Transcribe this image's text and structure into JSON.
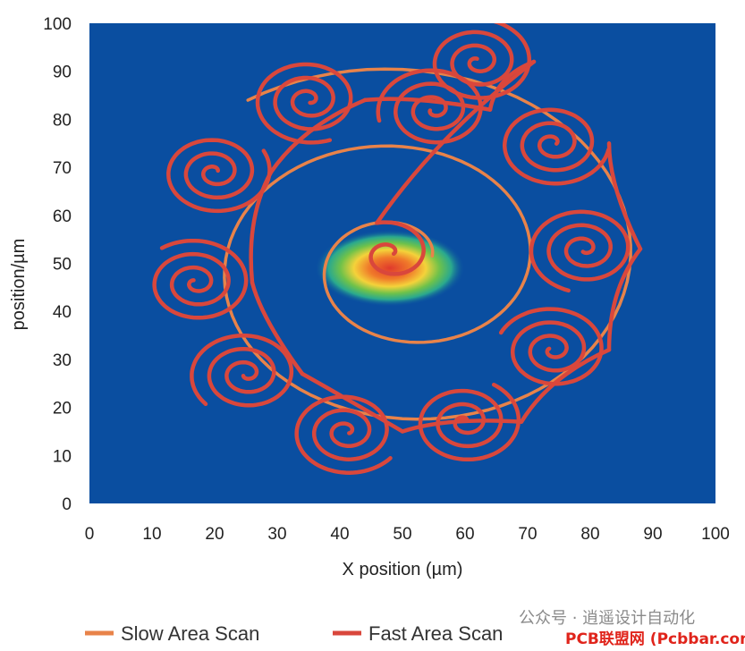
{
  "chart_data": {
    "type": "line",
    "xlabel": "X position (µm)",
    "ylabel": "position/µm",
    "xlim": [
      0,
      100
    ],
    "ylim": [
      0,
      100
    ],
    "xticks": [
      0,
      10,
      20,
      30,
      40,
      50,
      60,
      70,
      80,
      90,
      100
    ],
    "yticks": [
      0,
      10,
      20,
      30,
      40,
      50,
      60,
      70,
      80,
      90,
      100
    ],
    "background_color": "#0a4ea0",
    "legend_position": "bottom",
    "legend": [
      {
        "label": "Slow Area Scan",
        "color": "#e8834a"
      },
      {
        "label": "Fast Area Scan",
        "color": "#d9473c"
      }
    ],
    "hotspot": {
      "center": [
        48,
        49
      ],
      "radius_x": 12,
      "radius_y": 8
    },
    "series": [
      {
        "name": "Slow Area Scan",
        "kind": "spiral",
        "center": [
          50,
          50
        ],
        "start_radius": 5,
        "end_radius": 42,
        "turns": 2.3
      },
      {
        "name": "Fast Area Scan",
        "kind": "spiral-cluster",
        "spiral_radius": 9,
        "spiral_turns": 3,
        "centers": [
          [
            48,
            52
          ],
          [
            62,
            92
          ],
          [
            55,
            82
          ],
          [
            35,
            84
          ],
          [
            20,
            69
          ],
          [
            17,
            46
          ],
          [
            25,
            27
          ],
          [
            41,
            15
          ],
          [
            60,
            17
          ],
          [
            74,
            32
          ],
          [
            79,
            53
          ],
          [
            74,
            75
          ]
        ]
      }
    ]
  },
  "watermark": {
    "text": "公众号 · 逍遥设计自动化",
    "source": "PCB联盟网 (Pcbbar.com)"
  }
}
